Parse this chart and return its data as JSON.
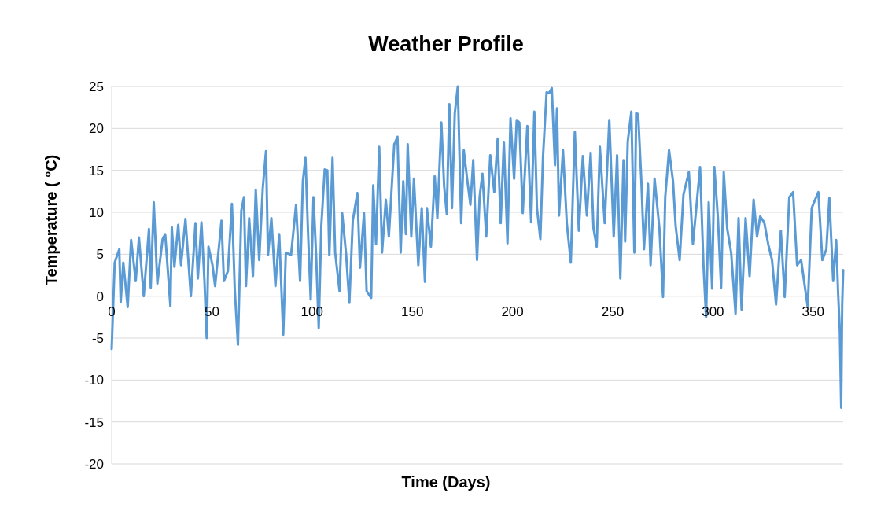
{
  "chart_data": {
    "type": "line",
    "title": "Weather Profile",
    "xlabel": "Time (Days)",
    "ylabel": "Temperature ( °C)",
    "xlim": [
      0,
      365
    ],
    "xticks": [
      0,
      50,
      100,
      150,
      200,
      250,
      300,
      350
    ],
    "ylim": [
      -20,
      25
    ],
    "yticks": [
      -20,
      -15,
      -10,
      -5,
      0,
      5,
      10,
      15,
      20,
      25
    ],
    "grid": "y",
    "marker": "none",
    "line_style": "solid",
    "series": [
      {
        "color": "#5b9bd5",
        "x": [
          0,
          1.5,
          3.8,
          4.5,
          5.8,
          8,
          9.7,
          12,
          13.6,
          16,
          18.6,
          19.5,
          21,
          22.8,
          25.4,
          26.7,
          29.3,
          30,
          31.3,
          33.2,
          34.6,
          36.8,
          39.5,
          41.8,
          43,
          44.8,
          46.3,
          47.4,
          48.3,
          50.3,
          51.6,
          54.8,
          56,
          58,
          60,
          61.4,
          63,
          64.7,
          66,
          67,
          68.6,
          70.5,
          71.9,
          73.6,
          75.4,
          77,
          78,
          79.7,
          81.7,
          83.6,
          85.6,
          86.9,
          89.5,
          92,
          94,
          95.4,
          96.7,
          98,
          99.3,
          100.7,
          102,
          103.3,
          104.6,
          106.3,
          107.6,
          108.6,
          110.2,
          111.5,
          113.7,
          115,
          117,
          118.6,
          120.3,
          122.6,
          123.9,
          125.9,
          127.2,
          129.5,
          130.5,
          131.9,
          133.5,
          134.9,
          136.8,
          138.3,
          139.6,
          141,
          142.6,
          144.2,
          145.5,
          146.8,
          147.7,
          149.5,
          150.8,
          153,
          154.7,
          156.3,
          157.3,
          159.3,
          161.2,
          162.5,
          164.5,
          165.9,
          167.2,
          168.5,
          169.8,
          171.2,
          172.7,
          174.4,
          175.7,
          177.5,
          179,
          180.4,
          182.3,
          183.6,
          185,
          186.9,
          188.9,
          190.9,
          192.6,
          194.1,
          195.7,
          197.5,
          199,
          200.8,
          202.1,
          203.4,
          205.1,
          207.4,
          209.3,
          210.9,
          212.2,
          213.9,
          215.2,
          217,
          218.3,
          219.6,
          221.2,
          222.2,
          223.2,
          225.2,
          227.1,
          229.1,
          231.1,
          233.1,
          235.1,
          237.1,
          239,
          240.4,
          242,
          243.6,
          246,
          248.3,
          250.5,
          252.2,
          253.8,
          255.4,
          256.2,
          257.5,
          259.3,
          260.8,
          261.7,
          262.7,
          264.3,
          265.6,
          267.6,
          268.9,
          270.9,
          273.3,
          275.1,
          276.2,
          278.1,
          280.1,
          281.4,
          283.4,
          285.3,
          288,
          290,
          291.7,
          293.6,
          295.3,
          296.6,
          297.9,
          299.6,
          300.7,
          302.5,
          304.1,
          305.4,
          307.1,
          309.1,
          311.3,
          312.8,
          314.3,
          316.3,
          318.3,
          320.3,
          322,
          323.6,
          325.6,
          327.6,
          329.5,
          331.5,
          333.9,
          335.8,
          338.1,
          340,
          342,
          344,
          347.3,
          349.3,
          351,
          352.6,
          354.6,
          356.6,
          358.1,
          360,
          361.5,
          362.5,
          363.3,
          364,
          364.5,
          365
        ],
        "values": [
          -6.3,
          4,
          5.6,
          -0.7,
          4,
          -1.3,
          6.7,
          1.8,
          7,
          0,
          8,
          1,
          11.2,
          1.5,
          6.8,
          7.4,
          -1.2,
          8.2,
          3.5,
          8.5,
          3.7,
          9.2,
          0,
          8.7,
          2.1,
          8.8,
          1.8,
          -5,
          5.9,
          3.7,
          1.2,
          9,
          1.8,
          3,
          11,
          0.9,
          -5.8,
          10.2,
          11.8,
          1.2,
          9.3,
          2.4,
          12.7,
          4.3,
          12.9,
          17.3,
          4.9,
          9.3,
          1.2,
          7.4,
          -4.6,
          5.2,
          4.9,
          10.9,
          1.8,
          13.7,
          16.5,
          7.4,
          -0.4,
          11.8,
          4.9,
          -3.8,
          8.4,
          15.1,
          15,
          4.9,
          16.5,
          5.2,
          0.6,
          9.9,
          4.9,
          -0.8,
          9,
          12.3,
          3.4,
          9.9,
          0.6,
          -0.2,
          13.2,
          6.2,
          17.8,
          5.2,
          11.5,
          7.1,
          12.4,
          18.1,
          19,
          5.2,
          13.7,
          7.4,
          18.1,
          7.1,
          14,
          3.7,
          10.5,
          1.7,
          10.5,
          5.9,
          14.3,
          9.3,
          20.7,
          13.1,
          9.8,
          22.9,
          10.5,
          21.8,
          25,
          8.7,
          17.4,
          13.7,
          10.9,
          16.2,
          4.3,
          11.8,
          14.6,
          7.1,
          16.8,
          12.4,
          18.8,
          8.7,
          18.4,
          6.3,
          21.2,
          14,
          21,
          20.7,
          9.9,
          20.3,
          8.8,
          22,
          10.5,
          6.8,
          16.5,
          24.3,
          24.2,
          24.8,
          15.6,
          22.4,
          9.6,
          17.4,
          8.7,
          4,
          19.6,
          7.8,
          16.7,
          9.6,
          17.1,
          8.1,
          5.9,
          17.8,
          8.7,
          21,
          7.1,
          16.8,
          2.1,
          16.2,
          6.5,
          18.4,
          22,
          5.2,
          21.8,
          21.7,
          13.7,
          5.6,
          13.4,
          3.7,
          14,
          8.1,
          -0.1,
          11.8,
          17.4,
          13.7,
          8.4,
          4.3,
          12.1,
          14.8,
          6.2,
          10.5,
          15.4,
          3.7,
          -2.5,
          11.2,
          0.9,
          15.4,
          9.3,
          1,
          14.8,
          8.1,
          5.2,
          -2.1,
          9.3,
          -1.6,
          9.3,
          2.4,
          11.5,
          7.1,
          9.5,
          8.8,
          6.2,
          4.3,
          -1,
          7.8,
          -0.1,
          11.8,
          12.4,
          3.7,
          4.3,
          -1.3,
          10.5,
          11.5,
          12.4,
          4.3,
          5.6,
          11.7,
          1.8,
          6.7,
          0.2,
          -4,
          -13.3,
          -1,
          3.1
        ]
      }
    ]
  }
}
